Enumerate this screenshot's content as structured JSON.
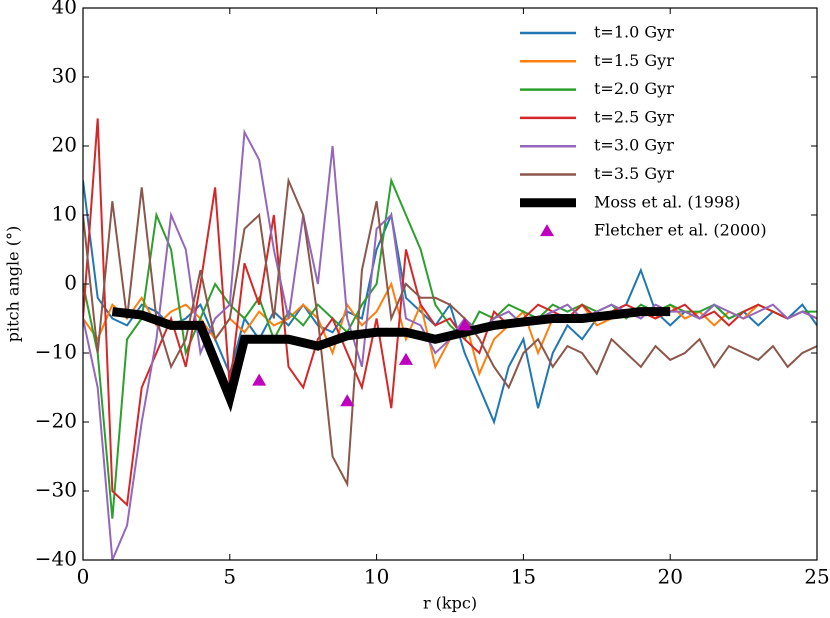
{
  "chart_data": {
    "type": "line",
    "xlabel": "r (kpc)",
    "ylabel": "pitch angle (°)",
    "xlim": [
      0,
      25
    ],
    "ylim": [
      -40,
      40
    ],
    "xticks": [
      0,
      5,
      10,
      15,
      20,
      25
    ],
    "yticks": [
      {
        "value": -40,
        "label": "−40"
      },
      {
        "value": -30,
        "label": "−30"
      },
      {
        "value": -20,
        "label": "−20"
      },
      {
        "value": -10,
        "label": "−10"
      },
      0,
      10,
      20,
      30,
      40
    ],
    "legend": "upper right",
    "x": [
      0,
      0.5,
      1,
      1.5,
      2,
      2.5,
      3,
      3.5,
      4,
      4.5,
      5,
      5.5,
      6,
      6.5,
      7,
      7.5,
      8,
      8.5,
      9,
      9.5,
      10,
      10.5,
      11,
      11.5,
      12,
      12.5,
      13,
      13.5,
      14,
      14.5,
      15,
      15.5,
      16,
      16.5,
      17,
      17.5,
      18,
      18.5,
      19,
      19.5,
      20,
      20.5,
      21,
      21.5,
      22,
      22.5,
      23,
      23.5,
      24,
      24.5,
      25
    ],
    "series": [
      {
        "name": "t=1.0 Gyr",
        "color": "#1f77b4",
        "values": [
          15,
          -2,
          -5,
          -6,
          -3,
          -4,
          -6,
          -5,
          -3,
          -8,
          -13,
          -5,
          -8,
          -4,
          -6,
          -3,
          -6,
          -7,
          -4,
          -5,
          5,
          10,
          -2,
          -4,
          -6,
          -3,
          -10,
          -15,
          -20,
          -12,
          -8,
          -18,
          -10,
          -6,
          -8,
          -5,
          -4,
          -3,
          2,
          -4,
          -6,
          -4,
          -5,
          -3,
          -5,
          -4,
          -6,
          -4,
          -5,
          -3,
          -6
        ]
      },
      {
        "name": "t=1.5 Gyr",
        "color": "#ff7f0e",
        "values": [
          -5,
          -8,
          -3,
          -5,
          -2,
          -6,
          -4,
          -3,
          -5,
          -8,
          -5,
          -7,
          -4,
          -6,
          -5,
          -3,
          -5,
          -10,
          -3,
          -6,
          -4,
          0,
          -8,
          -3,
          -12,
          -8,
          -5,
          -13,
          -8,
          -6,
          -4,
          -10,
          -5,
          -5,
          -3,
          -6,
          -5,
          -4,
          -4,
          -5,
          -3,
          -5,
          -4,
          -6,
          -4,
          -5,
          -3,
          -4,
          -5,
          -4,
          -5
        ]
      },
      {
        "name": "t=2.0 Gyr",
        "color": "#2ca02c",
        "values": [
          0,
          -10,
          -34,
          -8,
          -5,
          10,
          5,
          -10,
          -5,
          0,
          -3,
          -5,
          -2,
          -8,
          -4,
          -6,
          -3,
          -5,
          -7,
          -3,
          0,
          15,
          10,
          5,
          -3,
          -6,
          -8,
          -4,
          -5,
          -3,
          -4,
          -5,
          -3,
          -4,
          -3,
          -4,
          -3,
          -5,
          -3,
          -4,
          -3,
          -4,
          -4,
          -3,
          -5,
          -4,
          -3,
          -4,
          -5,
          -4,
          -4
        ]
      },
      {
        "name": "t=2.5 Gyr",
        "color": "#d62728",
        "values": [
          -5,
          24,
          -30,
          -32,
          -15,
          -10,
          -5,
          -12,
          0,
          14,
          -15,
          3,
          -3,
          10,
          -12,
          -15,
          -8,
          -5,
          -10,
          -15,
          -5,
          -18,
          5,
          -3,
          -6,
          -5,
          -8,
          -10,
          -4,
          -6,
          -5,
          -3,
          -4,
          -5,
          -3,
          -5,
          -4,
          -3,
          -4,
          -5,
          -4,
          -3,
          -5,
          -4,
          -6,
          -4,
          -3,
          -4,
          -5,
          -4,
          -5
        ]
      },
      {
        "name": "t=3.0 Gyr",
        "color": "#9467bd",
        "values": [
          -5,
          -15,
          -40,
          -35,
          -20,
          -8,
          10,
          5,
          -10,
          -5,
          -3,
          22,
          18,
          5,
          -5,
          10,
          0,
          20,
          -5,
          -12,
          8,
          10,
          -5,
          -6,
          -10,
          -8,
          -5,
          -7,
          -5,
          -4,
          -6,
          -5,
          -4,
          -3,
          -5,
          -4,
          -3,
          -4,
          -5,
          -3,
          -4,
          -4,
          -5,
          -3,
          -4,
          -5,
          -4,
          -3,
          -5,
          -4,
          -5
        ]
      },
      {
        "name": "t=3.5 Gyr",
        "color": "#8c564b",
        "values": [
          10,
          -10,
          12,
          -5,
          14,
          -5,
          -12,
          -8,
          2,
          -8,
          -5,
          8,
          10,
          -5,
          15,
          10,
          -5,
          -25,
          -29,
          2,
          12,
          -5,
          0,
          -2,
          -2,
          -3,
          -5,
          -8,
          -12,
          -15,
          -10,
          -8,
          -12,
          -9,
          -10,
          -13,
          -8,
          -10,
          -12,
          -9,
          -11,
          -10,
          -8,
          -12,
          -9,
          -10,
          -11,
          -9,
          -12,
          -10,
          -9
        ]
      },
      {
        "name": "Moss et al. (1998)",
        "color": "#000000",
        "width": 9,
        "x": [
          1,
          2,
          3,
          4,
          5,
          5.5,
          7,
          8,
          9,
          10,
          11,
          12,
          13,
          14,
          15,
          16,
          17,
          18,
          19,
          20
        ],
        "values": [
          -4,
          -4.5,
          -6,
          -6,
          -16.5,
          -8,
          -8,
          -9,
          -7.5,
          -7,
          -7,
          -8,
          -7,
          -6,
          -5.5,
          -5,
          -5,
          -4.5,
          -4,
          -4
        ]
      },
      {
        "name": "Fletcher et al. (2000)",
        "color": "#bf00bf",
        "marker": "triangle",
        "x": [
          6,
          9,
          11,
          13
        ],
        "values": [
          -14,
          -17,
          -11,
          -6
        ]
      }
    ]
  }
}
